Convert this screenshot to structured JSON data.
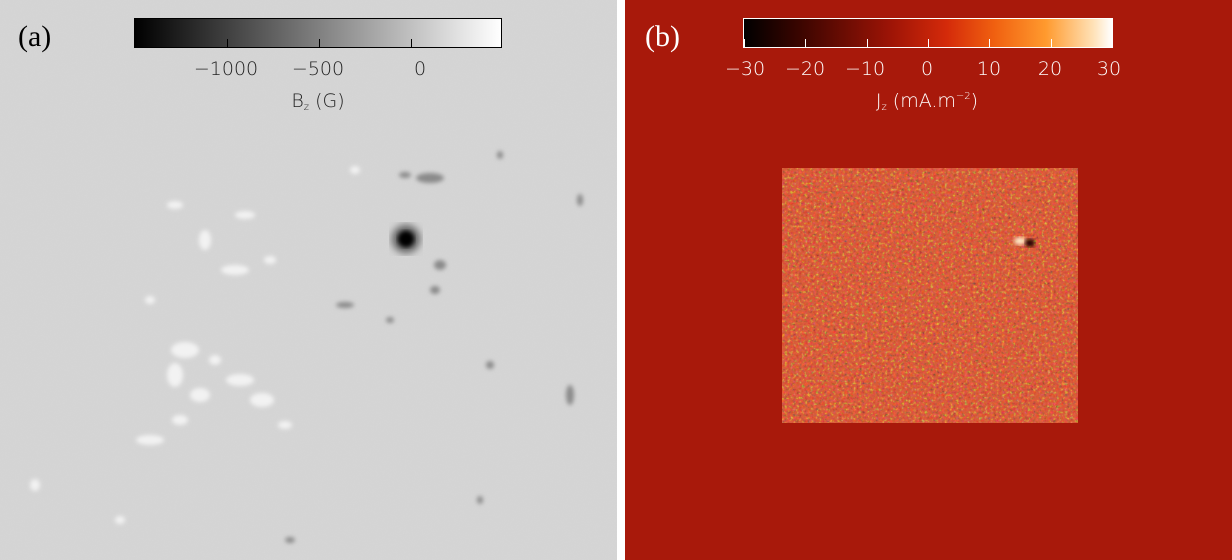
{
  "panels": [
    {
      "label": "(a)",
      "colorbar": {
        "ticks": [
          "−1000",
          "−500",
          "0"
        ],
        "title_main": "B",
        "title_sub": "z",
        "title_unit": " (G)",
        "colormap": "grayscale",
        "range": [
          -1500,
          500
        ]
      },
      "background_color": "#d6d6d6"
    },
    {
      "label": "(b)",
      "colorbar": {
        "ticks": [
          "−30",
          "−20",
          "−10",
          "0",
          "10",
          "20",
          "30"
        ],
        "title_main": "J",
        "title_sub": "z",
        "title_unit_pre": " (mA.m",
        "title_unit_sup": "−2",
        "title_unit_post": ")",
        "colormap": "red-temperature",
        "range": [
          -30,
          30
        ]
      },
      "background_color": "#a8190b"
    }
  ]
}
